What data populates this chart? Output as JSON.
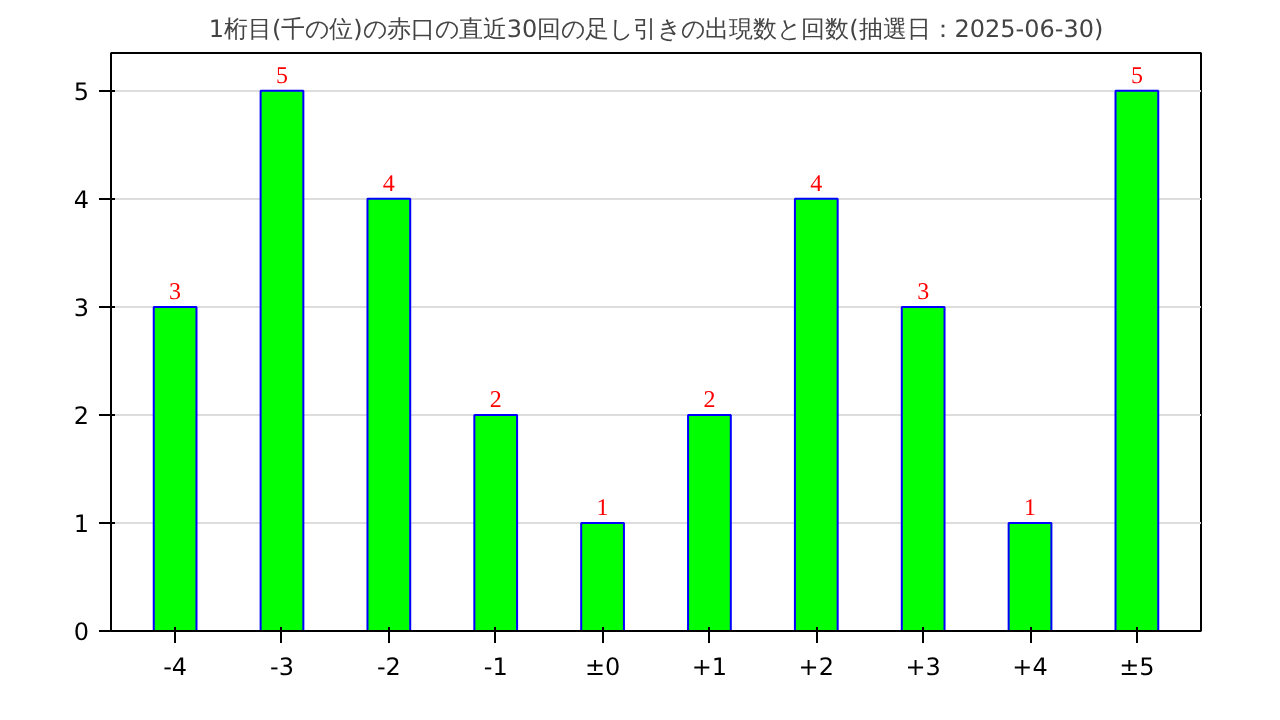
{
  "chart_data": {
    "type": "bar",
    "title": "1桁目(千の位)の赤口の直近30回の足し引きの出現数と回数(抽選日：2025-06-30)",
    "categories": [
      "-4",
      "-3",
      "-2",
      "-1",
      "±0",
      "+1",
      "+2",
      "+3",
      "+4",
      "±5"
    ],
    "values": [
      3,
      5,
      4,
      2,
      1,
      2,
      4,
      3,
      1,
      5
    ],
    "color": "#00ff00",
    "ylim": [
      0,
      5.35
    ],
    "yticks": [
      0,
      1,
      2,
      3,
      4,
      5
    ],
    "grid": "y",
    "data_labels": true
  }
}
